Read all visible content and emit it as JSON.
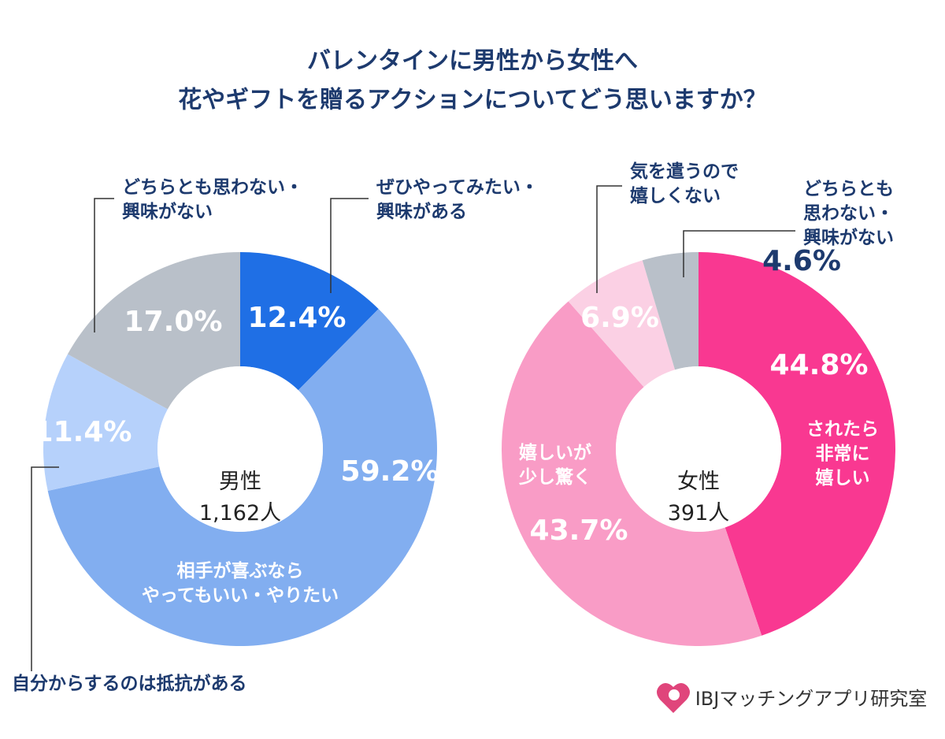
{
  "title": "バレンタインに男性から女性へ\n花やギフトを贈るアクションについてどう思いますか？",
  "logo": "IBJマッチングアプリ研究室",
  "chart_data": [
    {
      "type": "pie",
      "center_label": "男性",
      "center_sublabel": "1,162人",
      "categories": [
        "ぜひやってみたい・\n興味がある",
        "相手が喜ぶなら\nやってもいい・やりたい",
        "自分からするのは抵抗がある",
        "どちらとも思わない・\n興味がない"
      ],
      "values": [
        12.4,
        59.2,
        11.4,
        17.0
      ],
      "value_labels": [
        "12.4%",
        "59.2%",
        "11.4%",
        "17.0%"
      ],
      "colors": [
        "#1f6fe5",
        "#82aef0",
        "#b6d1fb",
        "#b9c0c9"
      ]
    },
    {
      "type": "pie",
      "center_label": "女性",
      "center_sublabel": "391人",
      "categories": [
        "されたら\n非常に\n嬉しい",
        "嬉しいが\n少し驚く",
        "気を遣うので\n嬉しくない",
        "どちらとも\n思わない・\n興味がない"
      ],
      "values": [
        44.8,
        43.7,
        6.9,
        4.6
      ],
      "value_labels": [
        "44.8%",
        "43.7%",
        "6.9%",
        "4.6%"
      ],
      "colors": [
        "#f93891",
        "#f99cc6",
        "#fbd0e4",
        "#b9c0c9"
      ]
    }
  ]
}
